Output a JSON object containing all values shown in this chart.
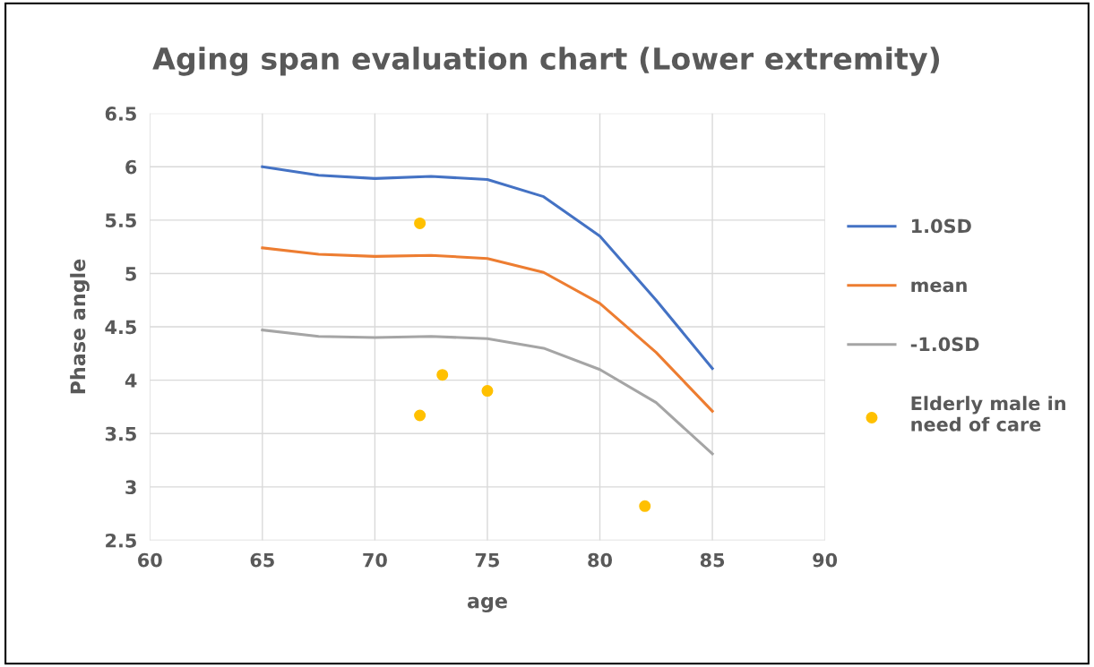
{
  "chart_data": {
    "type": "line",
    "title": "Aging span evaluation chart (Lower extremity)",
    "xlabel": "age",
    "ylabel": "Phase angle",
    "series": [
      {
        "name": "1.0SD",
        "color": "#4472c4",
        "x": [
          65,
          67.5,
          70,
          72.5,
          75,
          77.5,
          80,
          82.5,
          85
        ],
        "values": [
          6.0,
          5.92,
          5.89,
          5.91,
          5.88,
          5.72,
          5.35,
          4.75,
          4.11
        ]
      },
      {
        "name": "mean",
        "color": "#ed7d31",
        "x": [
          65,
          67.5,
          70,
          72.5,
          75,
          77.5,
          80,
          82.5,
          85
        ],
        "values": [
          5.24,
          5.18,
          5.16,
          5.17,
          5.14,
          5.01,
          4.72,
          4.26,
          3.71
        ]
      },
      {
        "name": "-1.0SD",
        "color": "#a5a5a5",
        "x": [
          65,
          67.5,
          70,
          72.5,
          75,
          77.5,
          80,
          82.5,
          85
        ],
        "values": [
          4.47,
          4.41,
          4.4,
          4.41,
          4.39,
          4.3,
          4.1,
          3.79,
          3.31
        ]
      },
      {
        "name": "Elderly male in need of care",
        "type": "scatter",
        "marker": "circle",
        "color": "#ffc000",
        "x": [
          72,
          72,
          73,
          75,
          82
        ],
        "values": [
          5.47,
          3.67,
          4.05,
          3.9,
          2.82
        ]
      }
    ],
    "xlim": [
      60,
      90
    ],
    "xticks": [
      60,
      65,
      70,
      75,
      80,
      85,
      90
    ],
    "ylim": [
      2.5,
      6.5
    ],
    "yticks": [
      2.5,
      3,
      3.5,
      4,
      4.5,
      5,
      5.5,
      6,
      {
        "value": 6.5,
        "label": "6.5"
      }
    ],
    "grid": true,
    "legend": "right",
    "marker": "none",
    "line_style": "solid"
  }
}
